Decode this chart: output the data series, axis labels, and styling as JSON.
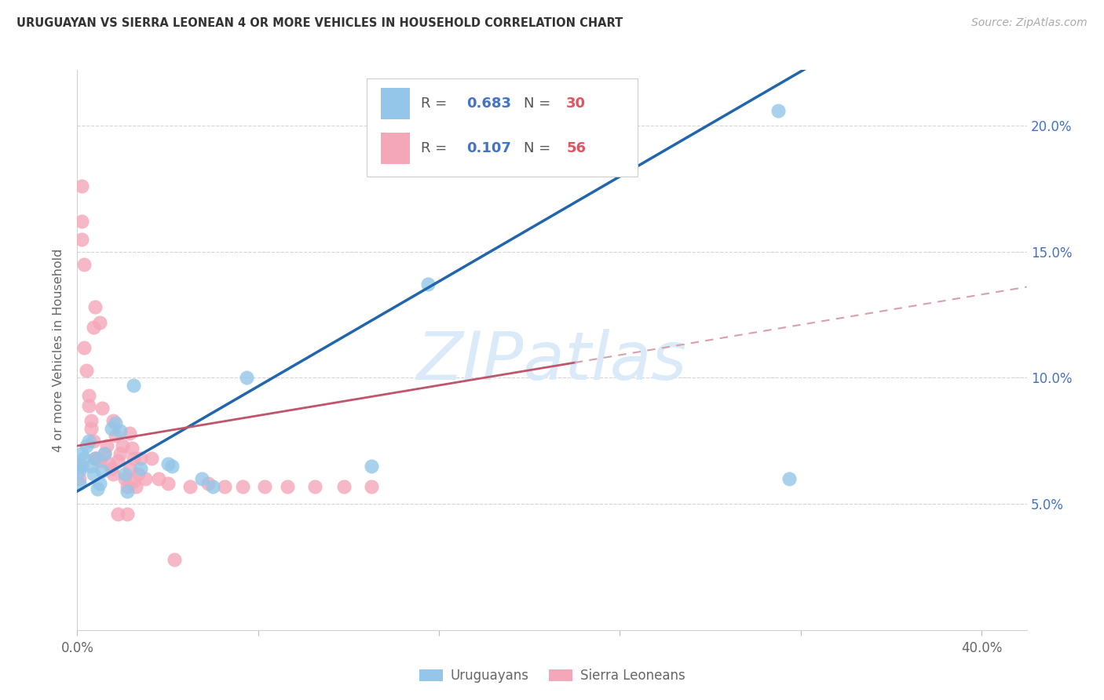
{
  "title": "URUGUAYAN VS SIERRA LEONEAN 4 OR MORE VEHICLES IN HOUSEHOLD CORRELATION CHART",
  "source": "Source: ZipAtlas.com",
  "ylabel": "4 or more Vehicles in Household",
  "xlim": [
    0.0,
    0.42
  ],
  "ylim": [
    -0.005,
    0.225
  ],
  "plot_ylim": [
    0.0,
    0.222
  ],
  "blue_color": "#93c6e8",
  "pink_color": "#f4a7b9",
  "blue_line_color": "#2166ac",
  "pink_line_color": "#c0546a",
  "pink_dash_color": "#d9a0aa",
  "watermark": "ZIPatlas",
  "watermark_color": "#daeaf8",
  "legend_label_blue": "Uruguayans",
  "legend_label_pink": "Sierra Leoneans",
  "blue_r": "0.683",
  "blue_n": "30",
  "pink_r": "0.107",
  "pink_n": "56",
  "blue_line_slope": 0.52,
  "blue_line_intercept": 0.055,
  "pink_line_slope": 0.15,
  "pink_line_intercept": 0.073,
  "uruguayan_x": [
    0.001,
    0.001,
    0.002,
    0.002,
    0.003,
    0.004,
    0.005,
    0.006,
    0.007,
    0.008,
    0.009,
    0.01,
    0.011,
    0.012,
    0.015,
    0.017,
    0.019,
    0.021,
    0.022,
    0.025,
    0.028,
    0.04,
    0.042,
    0.055,
    0.06,
    0.075,
    0.13,
    0.155,
    0.31,
    0.315
  ],
  "uruguayan_y": [
    0.063,
    0.058,
    0.07,
    0.065,
    0.068,
    0.073,
    0.075,
    0.065,
    0.062,
    0.068,
    0.056,
    0.058,
    0.063,
    0.07,
    0.08,
    0.082,
    0.079,
    0.062,
    0.055,
    0.097,
    0.064,
    0.066,
    0.065,
    0.06,
    0.057,
    0.1,
    0.065,
    0.137,
    0.206,
    0.06
  ],
  "sierraleone_x": [
    0.001,
    0.001,
    0.002,
    0.002,
    0.002,
    0.003,
    0.003,
    0.004,
    0.005,
    0.005,
    0.006,
    0.006,
    0.007,
    0.007,
    0.008,
    0.008,
    0.009,
    0.01,
    0.01,
    0.011,
    0.012,
    0.013,
    0.014,
    0.015,
    0.016,
    0.017,
    0.018,
    0.019,
    0.02,
    0.021,
    0.022,
    0.023,
    0.024,
    0.025,
    0.026,
    0.027,
    0.028,
    0.03,
    0.033,
    0.036,
    0.04,
    0.043,
    0.05,
    0.058,
    0.065,
    0.073,
    0.083,
    0.093,
    0.105,
    0.118,
    0.13,
    0.023,
    0.025,
    0.016,
    0.018,
    0.022
  ],
  "sierraleone_y": [
    0.065,
    0.06,
    0.176,
    0.162,
    0.155,
    0.145,
    0.112,
    0.103,
    0.093,
    0.089,
    0.083,
    0.08,
    0.12,
    0.075,
    0.068,
    0.128,
    0.068,
    0.067,
    0.122,
    0.088,
    0.07,
    0.073,
    0.066,
    0.064,
    0.062,
    0.077,
    0.067,
    0.07,
    0.073,
    0.06,
    0.057,
    0.064,
    0.072,
    0.068,
    0.057,
    0.062,
    0.068,
    0.06,
    0.068,
    0.06,
    0.058,
    0.028,
    0.057,
    0.058,
    0.057,
    0.057,
    0.057,
    0.057,
    0.057,
    0.057,
    0.057,
    0.078,
    0.059,
    0.083,
    0.046,
    0.046
  ]
}
